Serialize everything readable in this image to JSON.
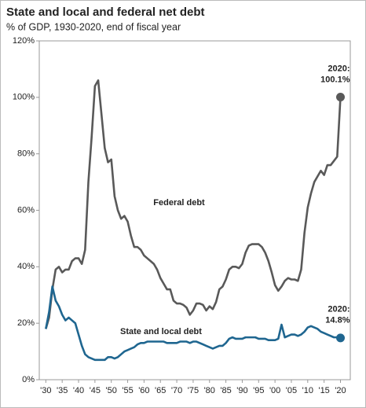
{
  "chart_data": {
    "type": "line",
    "title": "State and local and federal net debt",
    "subtitle": "% of GDP, 1930-2020, end of fiscal year",
    "x": [
      1930,
      1931,
      1932,
      1933,
      1934,
      1935,
      1936,
      1937,
      1938,
      1939,
      1940,
      1941,
      1942,
      1943,
      1944,
      1945,
      1946,
      1947,
      1948,
      1949,
      1950,
      1951,
      1952,
      1953,
      1954,
      1955,
      1956,
      1957,
      1958,
      1959,
      1960,
      1961,
      1962,
      1963,
      1964,
      1965,
      1966,
      1967,
      1968,
      1969,
      1970,
      1971,
      1972,
      1973,
      1974,
      1975,
      1976,
      1977,
      1978,
      1979,
      1980,
      1981,
      1982,
      1983,
      1984,
      1985,
      1986,
      1987,
      1988,
      1989,
      1990,
      1991,
      1992,
      1993,
      1994,
      1995,
      1996,
      1997,
      1998,
      1999,
      2000,
      2001,
      2002,
      2003,
      2004,
      2005,
      2006,
      2007,
      2008,
      2009,
      2010,
      2011,
      2012,
      2013,
      2014,
      2015,
      2016,
      2017,
      2018,
      2019,
      2020
    ],
    "series": [
      {
        "name": "Federal debt",
        "color": "#595959",
        "label_color": "#707070",
        "values": [
          18,
          22,
          32,
          39,
          40,
          38,
          39,
          39,
          42,
          43,
          43,
          41,
          46,
          70,
          86,
          104,
          106,
          94,
          82,
          77,
          78,
          65,
          60,
          57,
          58,
          56,
          51,
          47,
          47,
          46,
          44,
          43,
          42,
          41,
          39,
          36,
          34,
          32,
          32,
          28,
          27,
          27,
          26.5,
          25.5,
          23,
          24.5,
          27,
          27,
          26.5,
          24.5,
          26,
          25,
          27.5,
          32,
          33,
          35.5,
          39,
          40,
          40,
          39.5,
          41,
          45,
          47.5,
          48,
          48,
          48,
          47,
          45,
          42,
          38,
          33.5,
          31.5,
          33,
          35,
          36,
          35.5,
          35.5,
          35,
          39,
          52,
          61,
          66,
          70,
          72,
          74,
          72.5,
          76,
          76,
          77.5,
          79,
          100.1
        ]
      },
      {
        "name": "State and local debt",
        "color": "#1f6690",
        "label_color": "#1f6690",
        "values": [
          18,
          24,
          33,
          28,
          26,
          23,
          21,
          22,
          21,
          20,
          16,
          12,
          9,
          8,
          7.5,
          7,
          7,
          7,
          7,
          8,
          8,
          7.5,
          8,
          9,
          10,
          10.5,
          11,
          11.5,
          12.5,
          13,
          13,
          13.5,
          13.5,
          13.5,
          13.5,
          13.5,
          13.5,
          13,
          13,
          13,
          13,
          13.5,
          13.5,
          13.5,
          13,
          13.5,
          13.5,
          13,
          12.5,
          12,
          11.5,
          11,
          11.5,
          12,
          12,
          13,
          14.5,
          15,
          14.5,
          14.5,
          14.5,
          15,
          15,
          15,
          15,
          14.5,
          14.5,
          14.5,
          14,
          14,
          14,
          14.5,
          19.5,
          15,
          15.5,
          16,
          16,
          15.5,
          16,
          17,
          18.5,
          19,
          18.5,
          18,
          17,
          16.5,
          16,
          15.5,
          15,
          15,
          14.8
        ]
      }
    ],
    "annotations": [
      {
        "series": 0,
        "lines": [
          "2020:",
          "100.1%"
        ]
      },
      {
        "series": 1,
        "lines": [
          "2020:",
          "14.8%"
        ]
      }
    ],
    "xlim": [
      1928,
      2023
    ],
    "xticks": [
      {
        "value": 1930,
        "label": "'30"
      },
      {
        "value": 1935,
        "label": "'35"
      },
      {
        "value": 1940,
        "label": "'40"
      },
      {
        "value": 1945,
        "label": "'45"
      },
      {
        "value": 1950,
        "label": "'50"
      },
      {
        "value": 1955,
        "label": "'55"
      },
      {
        "value": 1960,
        "label": "'60"
      },
      {
        "value": 1965,
        "label": "'65"
      },
      {
        "value": 1970,
        "label": "'70"
      },
      {
        "value": 1975,
        "label": "'75"
      },
      {
        "value": 1980,
        "label": "'80"
      },
      {
        "value": 1985,
        "label": "'85"
      },
      {
        "value": 1990,
        "label": "'90"
      },
      {
        "value": 1995,
        "label": "'95"
      },
      {
        "value": 2000,
        "label": "'00"
      },
      {
        "value": 2005,
        "label": "'05"
      },
      {
        "value": 2010,
        "label": "'10"
      },
      {
        "value": 2015,
        "label": "'15"
      },
      {
        "value": 2020,
        "label": "'20"
      }
    ],
    "ylim": [
      0,
      120
    ],
    "yticks": [
      {
        "value": 0,
        "label": "0%"
      },
      {
        "value": 20,
        "label": "20%"
      },
      {
        "value": 40,
        "label": "40%"
      },
      {
        "value": 60,
        "label": "60%"
      },
      {
        "value": 80,
        "label": "80%"
      },
      {
        "value": 100,
        "label": "100%"
      },
      {
        "value": 120,
        "label": "120%"
      }
    ],
    "grid": false
  }
}
